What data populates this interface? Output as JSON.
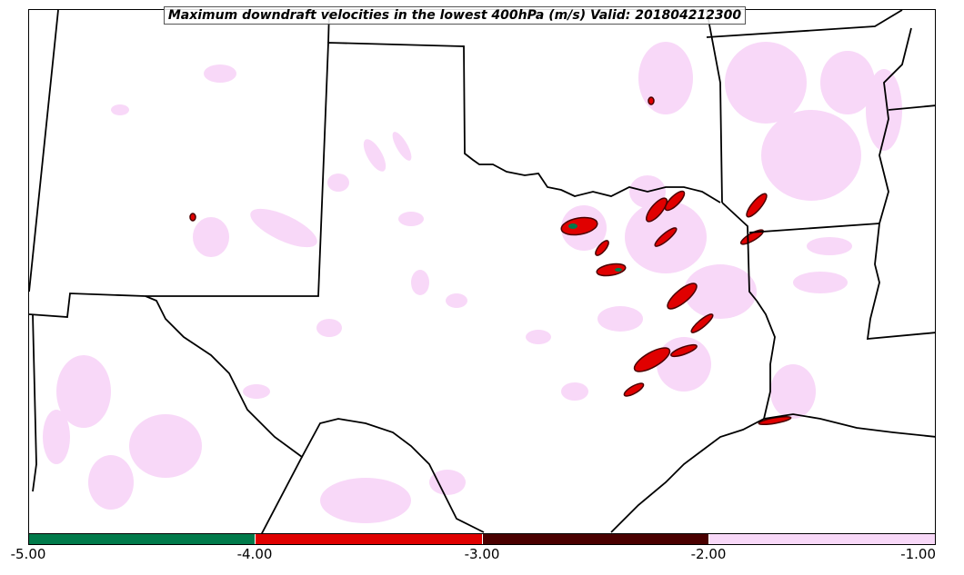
{
  "title": "Maximum downdraft velocities in the lowest 400hPa (m/s) Valid: 201804212300",
  "colorbar": {
    "ticks": [
      "-5.00",
      "-4.00",
      "-3.00",
      "-2.00",
      "-1.00"
    ],
    "segments": [
      {
        "range": [
          -5,
          -4
        ],
        "color": "#007a4a"
      },
      {
        "range": [
          -4,
          -3
        ],
        "color": "#e00000"
      },
      {
        "range": [
          -3,
          -2
        ],
        "color": "#4a0000"
      },
      {
        "range": [
          -2,
          -1
        ],
        "color": "#f8d8f8"
      }
    ]
  },
  "colors": {
    "weak_downdraft": "#f8d8f8",
    "moderate_downdraft": "#e00000",
    "strong_downdraft": "#4a0000",
    "extreme_downdraft": "#007a4a",
    "state_borders": "#000000"
  }
}
